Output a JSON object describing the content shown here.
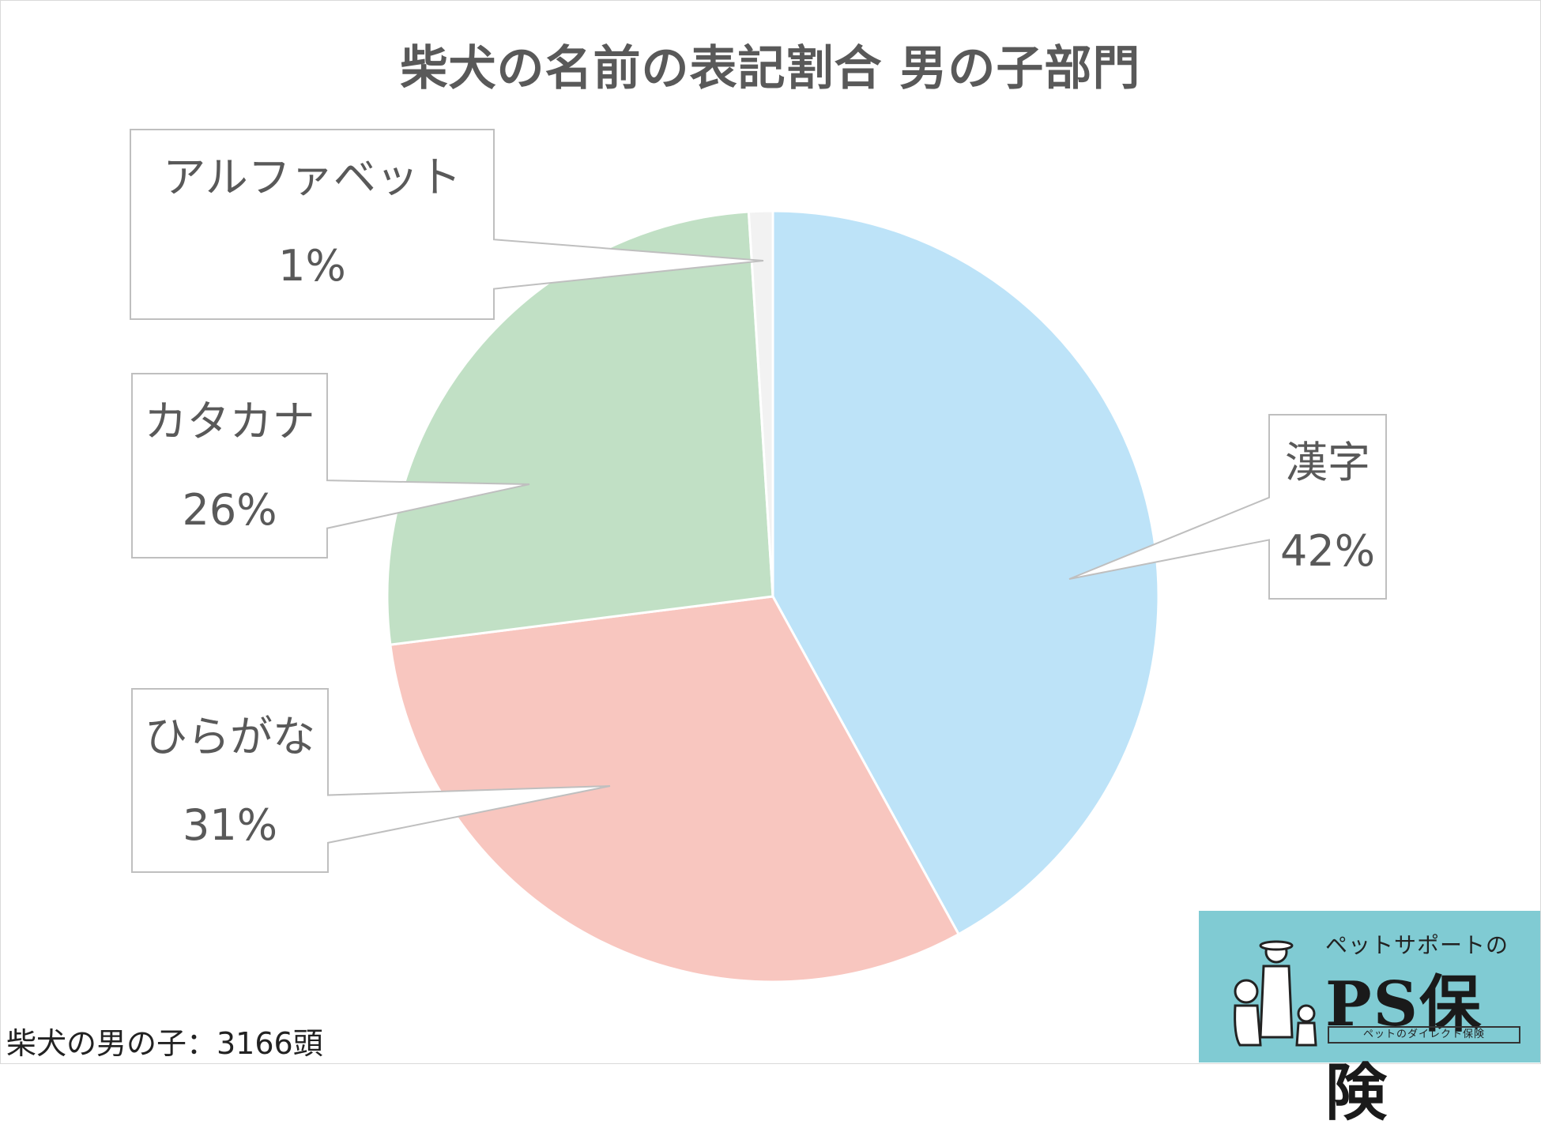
{
  "title": "柴犬の名前の表記割合 男の子部門",
  "chart_data": {
    "type": "pie",
    "title": "柴犬の名前の表記割合 男の子部門",
    "slices": [
      {
        "label": "漢字",
        "value": 42,
        "percent": "42%",
        "color": "#bde3f8"
      },
      {
        "label": "ひらがな",
        "value": 31,
        "percent": "31%",
        "color": "#f8c6bf"
      },
      {
        "label": "カタカナ",
        "value": 26,
        "percent": "26%",
        "color": "#c1e0c5"
      },
      {
        "label": "アルファベット",
        "value": 1,
        "percent": "1%",
        "color": "#f2f2f2"
      }
    ],
    "slice_border_color": "#ffffff",
    "callout_border_color": "#bfbfbf"
  },
  "footnote": "柴犬の男の子：3166頭",
  "logo": {
    "tagline": "ペットサポートの",
    "name": "PS保険",
    "subtitle": "ペットのダイレクト保険",
    "background": "#80cbd3"
  }
}
